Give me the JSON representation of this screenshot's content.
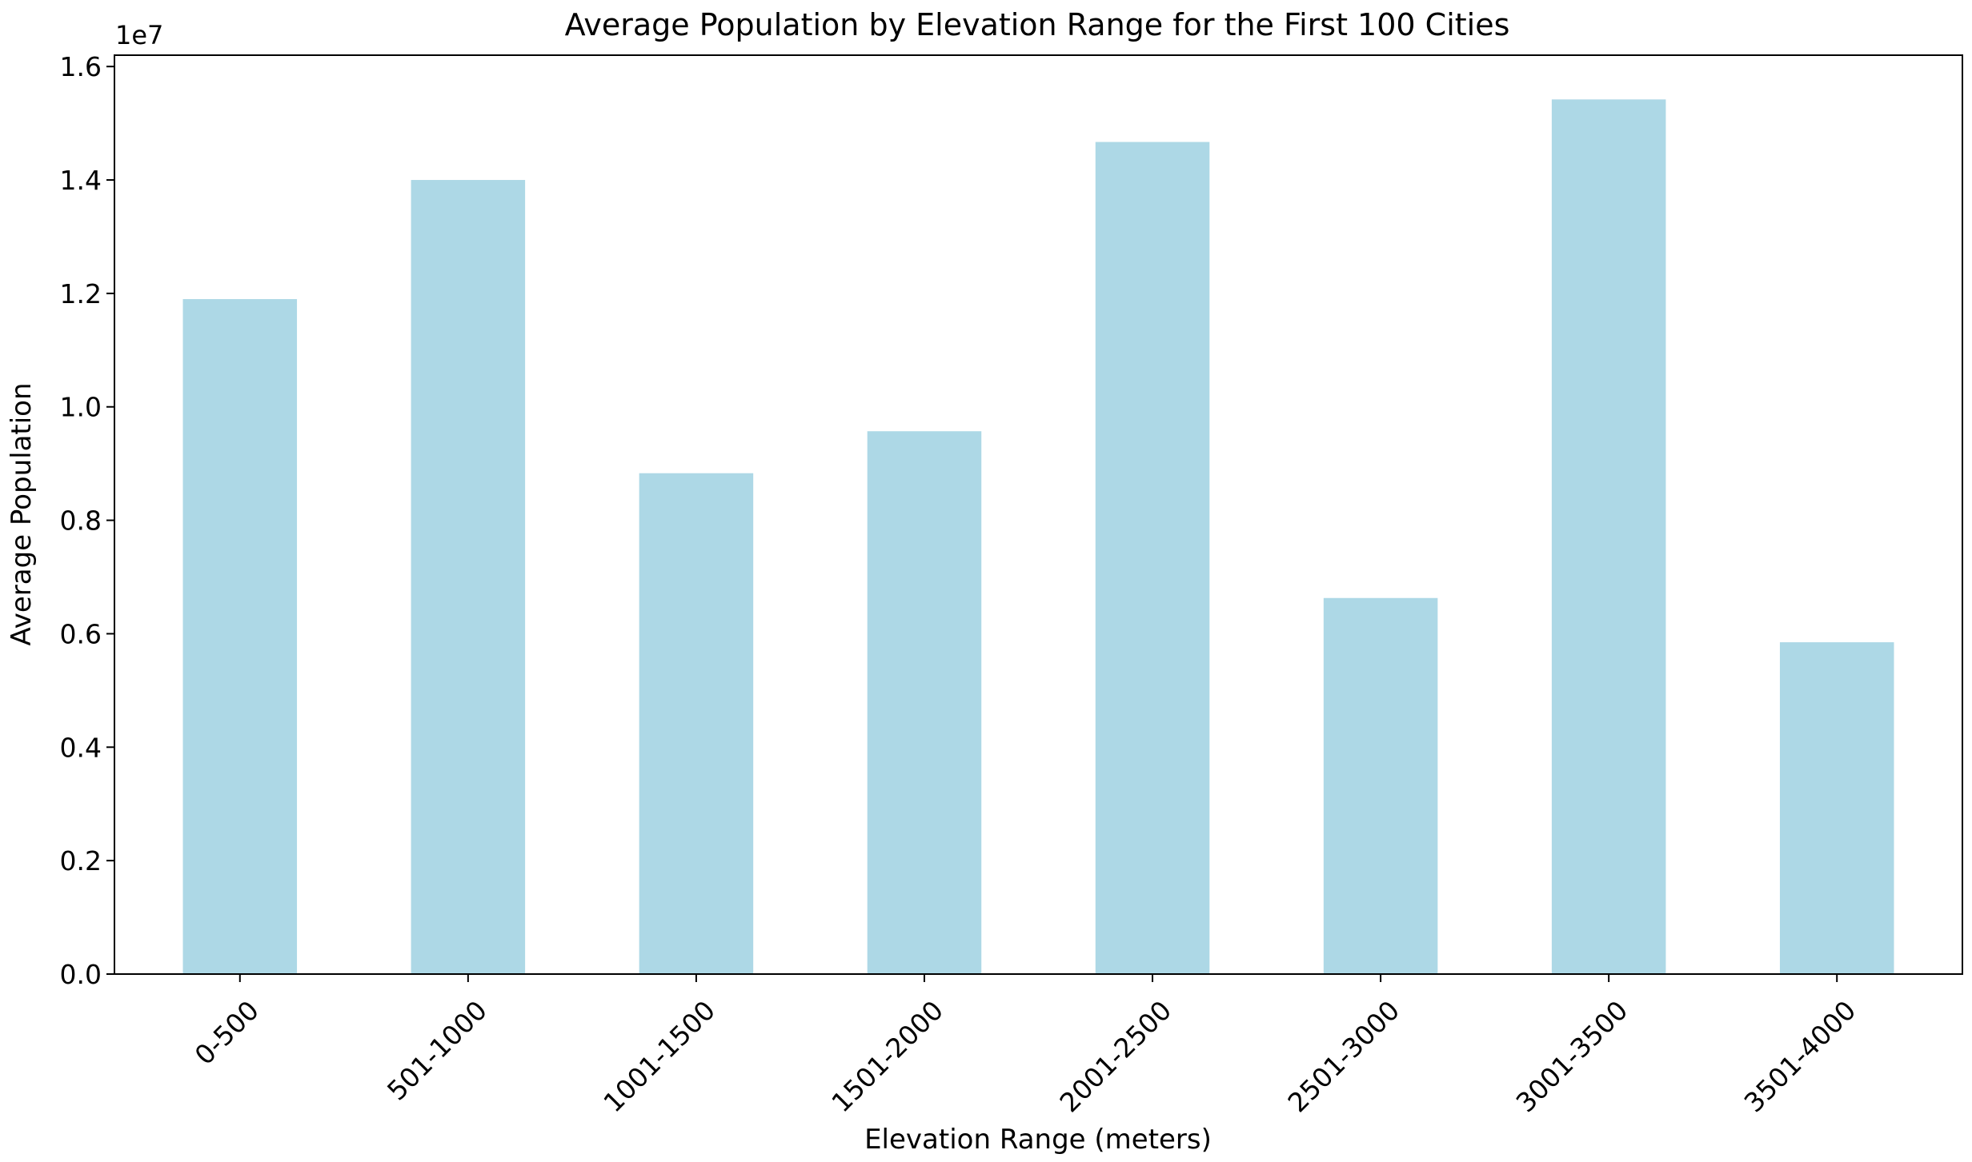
{
  "chart_data": {
    "type": "bar",
    "title": "Average Population by Elevation Range for the First 100 Cities",
    "xlabel": "Elevation Range (meters)",
    "ylabel": "Average Population",
    "y_offset_label": "1e7",
    "categories": [
      "0-500",
      "501-1000",
      "1001-1500",
      "1501-2000",
      "2001-2500",
      "2501-3000",
      "3001-3500",
      "3501-4000"
    ],
    "values": [
      11900000,
      14000000,
      8830000,
      9570000,
      14670000,
      6630000,
      15420000,
      5850000
    ],
    "y_ticks": [
      0.0,
      0.2,
      0.4,
      0.6,
      0.8,
      1.0,
      1.2,
      1.4,
      1.6
    ],
    "y_tick_labels": [
      "0.0",
      "0.2",
      "0.4",
      "0.6",
      "0.8",
      "1.0",
      "1.2",
      "1.4",
      "1.6"
    ],
    "ylim": [
      0,
      16200000
    ],
    "grid": false,
    "legend": "none",
    "bar_color": "#add8e6"
  }
}
